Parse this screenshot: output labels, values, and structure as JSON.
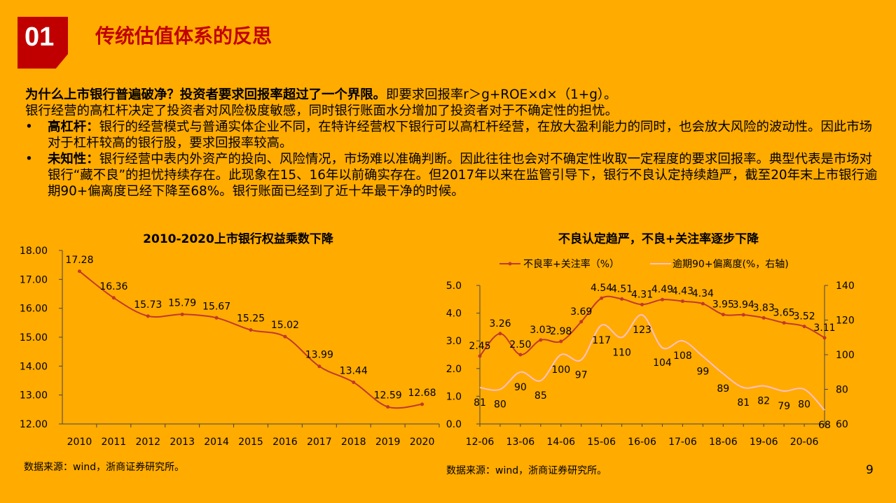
{
  "header": {
    "section_number": "01",
    "title": "传统估值体系的反思"
  },
  "body": {
    "lead_bold": "为什么上市银行普遍破净？投资者要求回报率超过了一个界限。",
    "lead_rest": "即要求回报率r＞g+ROE×d×（1+g）。",
    "line2": "银行经营的高杠杆决定了投资者对风险极度敏感，同时银行账面水分增加了投资者对于不确定性的担忧。",
    "bullet1_bold": "高杠杆：",
    "bullet1_text": "银行的经营模式与普通实体企业不同，在特许经营权下银行可以高杠杆经营，在放大盈利能力的同时，也会放大风险的波动性。因此市场对于杠杆较高的银行股，要求回报率较高。",
    "bullet2_bold": "未知性：",
    "bullet2_text": "银行经营中表内外资产的投向、风险情况，市场难以准确判断。因此往往也会对不确定性收取一定程度的要求回报率。典型代表是市场对银行“藏不良”的担忧持续存在。此现象在15、16年以前确实存在。但2017年以来在监管引导下，银行不良认定持续趋严，截至20年末上市银行逾期90+偏离度已经下降至68%。银行账面已经到了近十年最干净的时候。",
    "bullet_symbol": "•"
  },
  "chart_data": [
    {
      "type": "line",
      "title": "2010-2020上市银行权益乘数下降",
      "categories": [
        "2010",
        "2011",
        "2012",
        "2013",
        "2014",
        "2015",
        "2016",
        "2017",
        "2018",
        "2019",
        "2020"
      ],
      "values": [
        17.28,
        16.36,
        15.73,
        15.79,
        15.67,
        15.25,
        15.02,
        13.99,
        13.44,
        12.59,
        12.68
      ],
      "value_labels": [
        "17.28",
        "16.36",
        "15.73",
        "15.79",
        "15.67",
        "15.25",
        "15.02",
        "13.99",
        "13.44",
        "12.59",
        "12.68"
      ],
      "ylim": [
        12,
        18
      ],
      "yticks": [
        "12.00",
        "13.00",
        "14.00",
        "15.00",
        "16.00",
        "17.00",
        "18.00"
      ],
      "color": "#C0392B"
    },
    {
      "type": "line",
      "title": "不良认定趋严，不良+关注率逐步下降",
      "x_ticks": [
        "12-06",
        "13-06",
        "14-06",
        "15-06",
        "16-06",
        "17-06",
        "18-06",
        "19-06",
        "20-06"
      ],
      "series": [
        {
          "name": "不良率+关注率（%）",
          "axis": "left",
          "values": [
            2.45,
            3.26,
            2.5,
            3.03,
            2.98,
            3.69,
            4.54,
            4.51,
            4.31,
            4.49,
            4.43,
            4.34,
            3.95,
            3.94,
            3.83,
            3.65,
            3.52,
            3.11
          ],
          "labels": [
            "2.45",
            "3.26",
            "2.50",
            "3.03",
            "2.98",
            "3.69",
            "4.54",
            "4.51",
            "4.31",
            "4.49",
            "4.43",
            "4.34",
            "3.95",
            "3.94",
            "3.83",
            "3.65",
            "3.52",
            "3.11"
          ],
          "color": "#C0392B"
        },
        {
          "name": "逾期90+偏离度(%，右轴)",
          "axis": "right",
          "values": [
            81,
            80,
            90,
            85,
            100,
            97,
            117,
            110,
            123,
            104,
            108,
            99,
            89,
            81,
            82,
            79,
            80,
            68
          ],
          "labels": [
            "81",
            "80",
            "90",
            "85",
            "100",
            "97",
            "117",
            "110",
            "123",
            "104",
            "108",
            "99",
            "89",
            "81",
            "82",
            "79",
            "80",
            "68"
          ],
          "color": "#FFC0CB"
        }
      ],
      "ylim_left": [
        0,
        5
      ],
      "yticks_left": [
        "0.0",
        "1.0",
        "2.0",
        "3.0",
        "4.0",
        "5.0"
      ],
      "ylim_right": [
        60,
        140
      ],
      "yticks_right": [
        "60",
        "80",
        "100",
        "120",
        "140"
      ],
      "legend_position": "top"
    }
  ],
  "footer": {
    "source_left": "数据来源：wind，浙商证券研究所。",
    "source_right": "数据来源：wind，浙商证券研究所。",
    "page_number": "9"
  }
}
